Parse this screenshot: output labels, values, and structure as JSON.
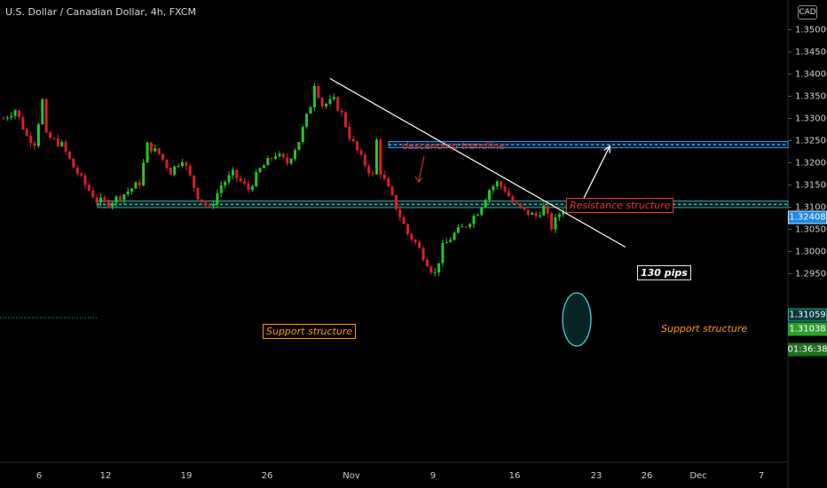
{
  "header": {
    "title": "U.S. Dollar / Canadian Dollar, 4h, FXCM",
    "currency_button": "CAD"
  },
  "colors": {
    "up": "#26c626",
    "down": "#d91e2a",
    "background": "#000000",
    "support_zone": "#26a69a",
    "resistance_zone": "#2196f3",
    "trendline": "#ffffff",
    "resistance_label": "#e53935",
    "support_label": "#ff9800",
    "descending_label": "#e53935"
  },
  "chart_data": {
    "type": "candlestick",
    "symbol": "USDCAD",
    "timeframe": "4h",
    "x_labels": [
      "6",
      "12",
      "19",
      "26",
      "Nov",
      "9",
      "16",
      "23",
      "26",
      "Dec",
      "7"
    ],
    "y_ticks": [
      "1.35000",
      "1.34500",
      "1.34000",
      "1.33500",
      "1.33000",
      "1.32500",
      "1.32000",
      "1.31500",
      "1.31000",
      "1.30500",
      "1.30000",
      "1.29500"
    ],
    "ylim": [
      1.2915,
      1.3525
    ],
    "close_path": [
      [
        0,
        1.33
      ],
      [
        3,
        1.332
      ],
      [
        6,
        1.326
      ],
      [
        8,
        1.3245
      ],
      [
        10,
        1.334
      ],
      [
        11,
        1.326
      ],
      [
        15,
        1.324
      ],
      [
        18,
        1.319
      ],
      [
        21,
        1.315
      ],
      [
        24,
        1.3115
      ],
      [
        27,
        1.311
      ],
      [
        31,
        1.313
      ],
      [
        35,
        1.3155
      ],
      [
        37,
        1.324
      ],
      [
        40,
        1.322
      ],
      [
        43,
        1.318
      ],
      [
        46,
        1.321
      ],
      [
        50,
        1.3125
      ],
      [
        53,
        1.3095
      ],
      [
        56,
        1.315
      ],
      [
        59,
        1.3175
      ],
      [
        63,
        1.314
      ],
      [
        66,
        1.3185
      ],
      [
        70,
        1.322
      ],
      [
        73,
        1.32
      ],
      [
        76,
        1.325
      ],
      [
        79,
        1.333
      ],
      [
        80,
        1.338
      ],
      [
        82,
        1.333
      ],
      [
        85,
        1.334
      ],
      [
        87,
        1.331
      ],
      [
        89,
        1.326
      ],
      [
        92,
        1.321
      ],
      [
        95,
        1.317
      ],
      [
        96,
        1.325
      ],
      [
        97,
        1.318
      ],
      [
        100,
        1.312
      ],
      [
        102,
        1.308
      ],
      [
        104,
        1.304
      ],
      [
        106,
        1.302
      ],
      [
        108,
        1.299
      ],
      [
        110,
        1.296
      ],
      [
        111,
        1.295
      ],
      [
        113,
        1.301
      ],
      [
        116,
        1.304
      ],
      [
        119,
        1.306
      ],
      [
        122,
        1.309
      ],
      [
        125,
        1.314
      ],
      [
        127,
        1.3155
      ],
      [
        129,
        1.314
      ],
      [
        131,
        1.311
      ],
      [
        134,
        1.309
      ],
      [
        137,
        1.308
      ],
      [
        139,
        1.31
      ],
      [
        141,
        1.3055
      ],
      [
        143,
        1.3085
      ],
      [
        145,
        1.3105
      ]
    ],
    "candle_count": 146,
    "support_zone": [
      1.3099,
      1.3114
    ],
    "resistance_zone": [
      1.3234,
      1.3248
    ],
    "trendline": {
      "from": [
        84,
        1.339
      ],
      "to": [
        160,
        1.301
      ]
    },
    "projection_arrow": {
      "from": [
        149,
        1.3115
      ],
      "to": [
        156,
        1.3238
      ]
    },
    "price_labels": [
      {
        "value": "1.32408",
        "price": 1.32408
      },
      {
        "value": "1.31059",
        "price": 1.31059
      },
      {
        "value": "1.31038",
        "price": 1.31038
      },
      {
        "value": "01:36:38",
        "price": 1.3062
      }
    ],
    "annotations": {
      "descending_trendline": "descending trendline",
      "resistance_structure": "Resistance structure",
      "support_structure_left": "Support structure",
      "support_structure_right": "Support structure",
      "pips": "130 pips"
    }
  }
}
